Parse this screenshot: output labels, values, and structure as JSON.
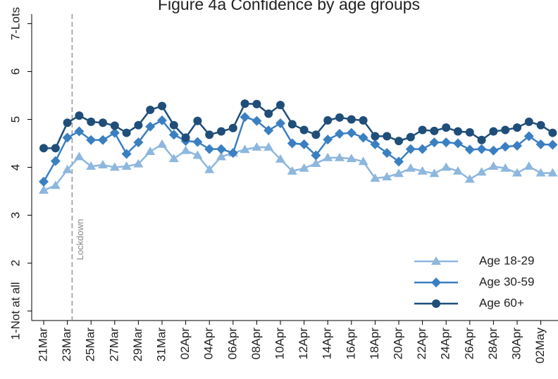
{
  "chart_data": {
    "type": "line",
    "title": "Figure 4a Confidence by age groups",
    "categories": [
      "21Mar",
      null,
      "23Mar",
      null,
      "25Mar",
      null,
      "27Mar",
      null,
      "29Mar",
      null,
      "31Mar",
      null,
      "02Apr",
      null,
      "04Apr",
      null,
      "06Apr",
      null,
      "08Apr",
      null,
      "10Apr",
      null,
      "12Apr",
      null,
      "14Apr",
      null,
      "16Apr",
      null,
      "18Apr",
      null,
      "20Apr",
      null,
      "22Apr",
      null,
      "24Apr",
      null,
      "26Apr",
      null,
      "28Apr",
      null,
      "30Apr",
      null,
      "02May",
      null
    ],
    "series": [
      {
        "name": "Age 18-29",
        "color": "#8db7de",
        "marker": "triangle",
        "values": [
          3.52,
          3.62,
          3.95,
          4.22,
          4.02,
          4.05,
          4.0,
          4.02,
          4.07,
          4.33,
          4.48,
          4.18,
          4.35,
          4.25,
          3.95,
          4.22,
          4.3,
          4.37,
          4.42,
          4.42,
          4.17,
          3.92,
          3.98,
          4.08,
          4.2,
          4.2,
          4.18,
          4.12,
          3.77,
          3.8,
          3.87,
          3.98,
          3.92,
          3.87,
          4.0,
          3.92,
          3.75,
          3.9,
          4.02,
          3.98,
          3.88,
          4.02,
          3.88,
          3.88
        ]
      },
      {
        "name": "Age 30-59",
        "color": "#3a7fc1",
        "marker": "diamond",
        "values": [
          3.7,
          4.13,
          4.62,
          4.75,
          4.57,
          4.57,
          4.72,
          4.28,
          4.52,
          4.85,
          4.98,
          4.68,
          4.55,
          4.53,
          4.38,
          4.38,
          4.3,
          5.05,
          4.97,
          4.77,
          4.92,
          4.5,
          4.48,
          4.25,
          4.58,
          4.7,
          4.72,
          4.62,
          4.48,
          4.3,
          4.12,
          4.38,
          4.38,
          4.52,
          4.52,
          4.5,
          4.37,
          4.38,
          4.35,
          4.43,
          4.45,
          4.65,
          4.48,
          4.47
        ]
      },
      {
        "name": "Age 60+",
        "color": "#1f4e79",
        "marker": "circle",
        "values": [
          4.4,
          4.4,
          4.93,
          5.08,
          4.95,
          4.93,
          4.87,
          4.72,
          4.88,
          5.2,
          5.28,
          4.88,
          4.62,
          4.97,
          4.68,
          4.75,
          4.82,
          5.33,
          5.32,
          5.12,
          5.3,
          4.9,
          4.78,
          4.68,
          4.98,
          5.04,
          5.0,
          4.98,
          4.65,
          4.65,
          4.55,
          4.63,
          4.78,
          4.76,
          4.83,
          4.75,
          4.73,
          4.57,
          4.75,
          4.78,
          4.83,
          4.95,
          4.88,
          4.72
        ]
      }
    ],
    "ylim": [
      0.8,
      7.2
    ],
    "yticks": [
      {
        "value": 1,
        "label": "1-Not at all"
      },
      2,
      3,
      4,
      5,
      6,
      {
        "value": 7,
        "label": "7-Lots"
      }
    ],
    "annotations": [
      {
        "text": "Lockdown",
        "x": 2.4
      }
    ],
    "legend": "lower right",
    "grid": false
  }
}
